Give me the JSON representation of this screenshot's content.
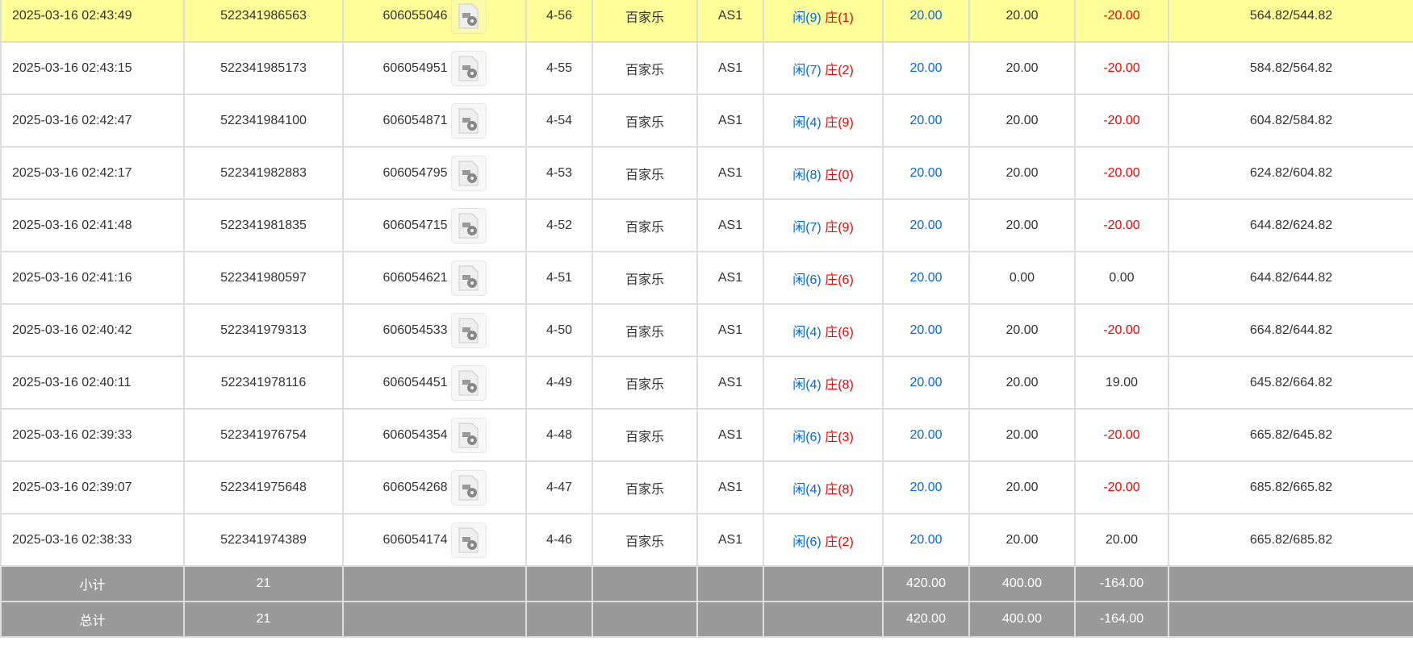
{
  "rows": [
    {
      "time": "2025-03-16 02:43:49",
      "order": "522341986563",
      "game_id": "606055046",
      "round": "4-56",
      "game": "百家乐",
      "table": "AS1",
      "player": "闲(9)",
      "banker": "庄(1)",
      "bet": "20.00",
      "valid": "20.00",
      "win": "-20.00",
      "win_neg": true,
      "balance": "564.82/544.82",
      "highlight": true
    },
    {
      "time": "2025-03-16 02:43:15",
      "order": "522341985173",
      "game_id": "606054951",
      "round": "4-55",
      "game": "百家乐",
      "table": "AS1",
      "player": "闲(7)",
      "banker": "庄(2)",
      "bet": "20.00",
      "valid": "20.00",
      "win": "-20.00",
      "win_neg": true,
      "balance": "584.82/564.82"
    },
    {
      "time": "2025-03-16 02:42:47",
      "order": "522341984100",
      "game_id": "606054871",
      "round": "4-54",
      "game": "百家乐",
      "table": "AS1",
      "player": "闲(4)",
      "banker": "庄(9)",
      "bet": "20.00",
      "valid": "20.00",
      "win": "-20.00",
      "win_neg": true,
      "balance": "604.82/584.82"
    },
    {
      "time": "2025-03-16 02:42:17",
      "order": "522341982883",
      "game_id": "606054795",
      "round": "4-53",
      "game": "百家乐",
      "table": "AS1",
      "player": "闲(8)",
      "banker": "庄(0)",
      "bet": "20.00",
      "valid": "20.00",
      "win": "-20.00",
      "win_neg": true,
      "balance": "624.82/604.82"
    },
    {
      "time": "2025-03-16 02:41:48",
      "order": "522341981835",
      "game_id": "606054715",
      "round": "4-52",
      "game": "百家乐",
      "table": "AS1",
      "player": "闲(7)",
      "banker": "庄(9)",
      "bet": "20.00",
      "valid": "20.00",
      "win": "-20.00",
      "win_neg": true,
      "balance": "644.82/624.82"
    },
    {
      "time": "2025-03-16 02:41:16",
      "order": "522341980597",
      "game_id": "606054621",
      "round": "4-51",
      "game": "百家乐",
      "table": "AS1",
      "player": "闲(6)",
      "banker": "庄(6)",
      "bet": "20.00",
      "valid": "0.00",
      "win": "0.00",
      "win_neg": false,
      "balance": "644.82/644.82"
    },
    {
      "time": "2025-03-16 02:40:42",
      "order": "522341979313",
      "game_id": "606054533",
      "round": "4-50",
      "game": "百家乐",
      "table": "AS1",
      "player": "闲(4)",
      "banker": "庄(6)",
      "bet": "20.00",
      "valid": "20.00",
      "win": "-20.00",
      "win_neg": true,
      "balance": "664.82/644.82"
    },
    {
      "time": "2025-03-16 02:40:11",
      "order": "522341978116",
      "game_id": "606054451",
      "round": "4-49",
      "game": "百家乐",
      "table": "AS1",
      "player": "闲(4)",
      "banker": "庄(8)",
      "bet": "20.00",
      "valid": "20.00",
      "win": "19.00",
      "win_neg": false,
      "balance": "645.82/664.82"
    },
    {
      "time": "2025-03-16 02:39:33",
      "order": "522341976754",
      "game_id": "606054354",
      "round": "4-48",
      "game": "百家乐",
      "table": "AS1",
      "player": "闲(6)",
      "banker": "庄(3)",
      "bet": "20.00",
      "valid": "20.00",
      "win": "-20.00",
      "win_neg": true,
      "balance": "665.82/645.82"
    },
    {
      "time": "2025-03-16 02:39:07",
      "order": "522341975648",
      "game_id": "606054268",
      "round": "4-47",
      "game": "百家乐",
      "table": "AS1",
      "player": "闲(4)",
      "banker": "庄(8)",
      "bet": "20.00",
      "valid": "20.00",
      "win": "-20.00",
      "win_neg": true,
      "balance": "685.82/665.82"
    },
    {
      "time": "2025-03-16 02:38:33",
      "order": "522341974389",
      "game_id": "606054174",
      "round": "4-46",
      "game": "百家乐",
      "table": "AS1",
      "player": "闲(6)",
      "banker": "庄(2)",
      "bet": "20.00",
      "valid": "20.00",
      "win": "20.00",
      "win_neg": false,
      "balance": "665.82/685.82"
    }
  ],
  "subtotal": {
    "label": "小计",
    "count": "21",
    "bet": "420.00",
    "valid": "400.00",
    "win": "-164.00"
  },
  "total": {
    "label": "总计",
    "count": "21",
    "bet": "420.00",
    "valid": "400.00",
    "win": "-164.00"
  },
  "colors": {
    "highlight": "#ffff99",
    "player": "#0066ff",
    "banker": "#ff0000",
    "negative": "#ff0000",
    "summary_bg": "#999999"
  },
  "icons": {
    "replay": "video-file-icon"
  }
}
